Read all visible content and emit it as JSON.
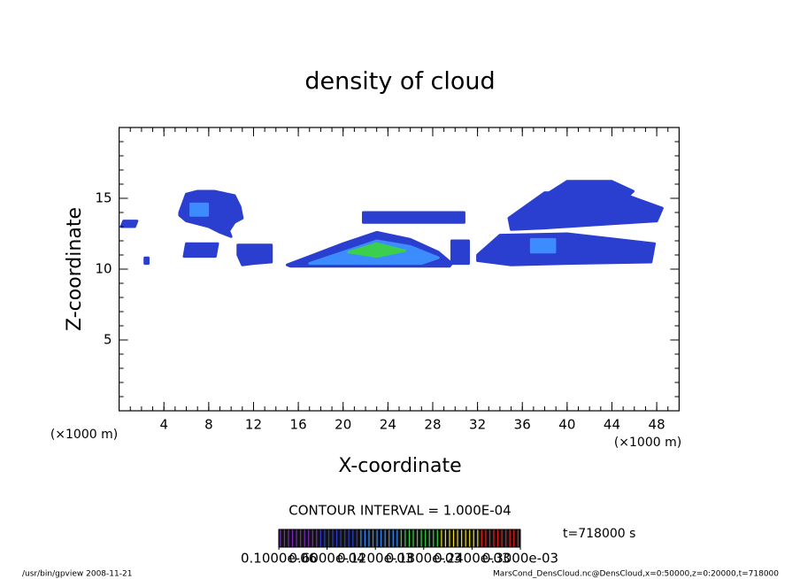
{
  "chart_data": {
    "type": "contour",
    "title": "density of cloud",
    "xlabel": "X-coordinate",
    "ylabel": "Z-coordinate",
    "x_unit": "(×1000 m)",
    "y_unit": "(×1000 m)",
    "xlim": [
      0,
      50
    ],
    "ylim": [
      0,
      20
    ],
    "xticks": [
      4,
      8,
      12,
      16,
      20,
      24,
      28,
      32,
      36,
      40,
      44,
      48
    ],
    "yticks": [
      5,
      10,
      15
    ],
    "minor_tick_step": 1,
    "colormap": [
      "#7b2cbf",
      "#2a3fd0",
      "#3d8cff",
      "#3ccf4e",
      "#f0e020",
      "#e02020"
    ],
    "regions": [
      {
        "x": [
          0.2,
          1.4,
          1.6,
          0.4
        ],
        "z": [
          13.0,
          13.0,
          13.4,
          13.4
        ],
        "level": 3e-05
      },
      {
        "x": [
          2.3,
          2.6,
          2.6,
          2.3
        ],
        "z": [
          10.4,
          10.4,
          10.8,
          10.8
        ],
        "level": 3e-05
      },
      {
        "x": [
          5.4,
          6.0,
          7.0,
          8.5,
          10.3,
          10.8,
          11.0,
          10.3,
          9.8,
          10.0,
          9.0,
          8.0,
          6.0,
          5.4
        ],
        "z": [
          14.0,
          15.3,
          15.5,
          15.5,
          15.2,
          14.4,
          13.6,
          13.3,
          12.7,
          12.3,
          12.6,
          13.0,
          13.4,
          13.8
        ],
        "level": 3e-05
      },
      {
        "x": [
          5.8,
          8.6,
          8.8,
          6.0
        ],
        "z": [
          10.9,
          10.9,
          11.8,
          11.8
        ],
        "level": 3e-05
      },
      {
        "x": [
          10.6,
          13.6,
          13.6,
          12.0,
          11.0,
          10.6
        ],
        "z": [
          11.7,
          11.7,
          10.5,
          10.4,
          10.3,
          11.0
        ],
        "level": 3e-05
      },
      {
        "x": [
          6.4,
          7.9,
          7.9,
          6.4
        ],
        "z": [
          13.8,
          13.8,
          14.6,
          14.6
        ],
        "level": 0.0001
      },
      {
        "x": [
          15.0,
          17,
          20,
          23,
          26,
          28.5,
          29.7,
          29.5,
          15.3
        ],
        "z": [
          10.3,
          10.9,
          11.8,
          12.6,
          12.1,
          11.2,
          10.4,
          10.2,
          10.2
        ],
        "level": 3e-05
      },
      {
        "x": [
          17,
          20,
          23,
          26,
          28.5,
          27,
          17
        ],
        "z": [
          10.4,
          11.2,
          12.0,
          11.6,
          10.8,
          10.4,
          10.4
        ],
        "level": 0.0001
      },
      {
        "x": [
          20.5,
          23,
          25.5,
          23
        ],
        "z": [
          11.2,
          11.8,
          11.3,
          10.9
        ],
        "level": 0.00015
      },
      {
        "x": [
          21.8,
          30.8,
          30.8,
          21.8
        ],
        "z": [
          13.3,
          13.3,
          14.0,
          14.0
        ],
        "level": 3e-05
      },
      {
        "x": [
          38.4,
          40,
          44,
          45.9,
          45.5,
          38.6
        ],
        "z": [
          15.4,
          16.2,
          16.2,
          15.5,
          15.2,
          15.1
        ],
        "level": 3e-05
      },
      {
        "x": [
          34.8,
          38,
          45,
          48.5,
          48,
          44,
          38,
          35
        ],
        "z": [
          13.6,
          15.4,
          15.3,
          14.3,
          13.4,
          13.2,
          12.9,
          12.8
        ],
        "level": 3e-05
      },
      {
        "x": [
          32,
          34,
          40,
          47.8,
          47.5,
          40,
          35,
          32
        ],
        "z": [
          11.0,
          12.4,
          12.5,
          11.8,
          10.5,
          10.4,
          10.3,
          10.6
        ],
        "level": 3e-05
      },
      {
        "x": [
          36.8,
          38.9,
          38.9,
          36.8
        ],
        "z": [
          11.2,
          11.2,
          12.1,
          12.1
        ],
        "level": 0.0001
      },
      {
        "x": [
          29.7,
          31.2,
          31.2,
          29.7
        ],
        "z": [
          10.4,
          10.4,
          12.0,
          12.0
        ],
        "level": 3e-05
      }
    ],
    "contour_interval": "CONTOUR INTERVAL = 1.000E-04",
    "time_label": "t=718000 s",
    "colorbar": {
      "clim": [
        0,
        0.0003
      ],
      "ticks": [
        {
          "value": 1e-07,
          "label": "0.1000e-06"
        },
        {
          "value": 6e-05,
          "label": "0.6000e-04"
        },
        {
          "value": 0.00012,
          "label": "0.1200e-03"
        },
        {
          "value": 0.00018,
          "label": "0.1800e-03"
        },
        {
          "value": 0.00024,
          "label": "0.2400e-03"
        },
        {
          "value": 0.0003,
          "label": "0.3000e-03"
        }
      ]
    },
    "footer_left": "/usr/bin/gpview   2008-11-21",
    "footer_right": "MarsCond_DensCloud.nc@DensCloud,x=0:50000,z=0:20000,t=718000"
  }
}
